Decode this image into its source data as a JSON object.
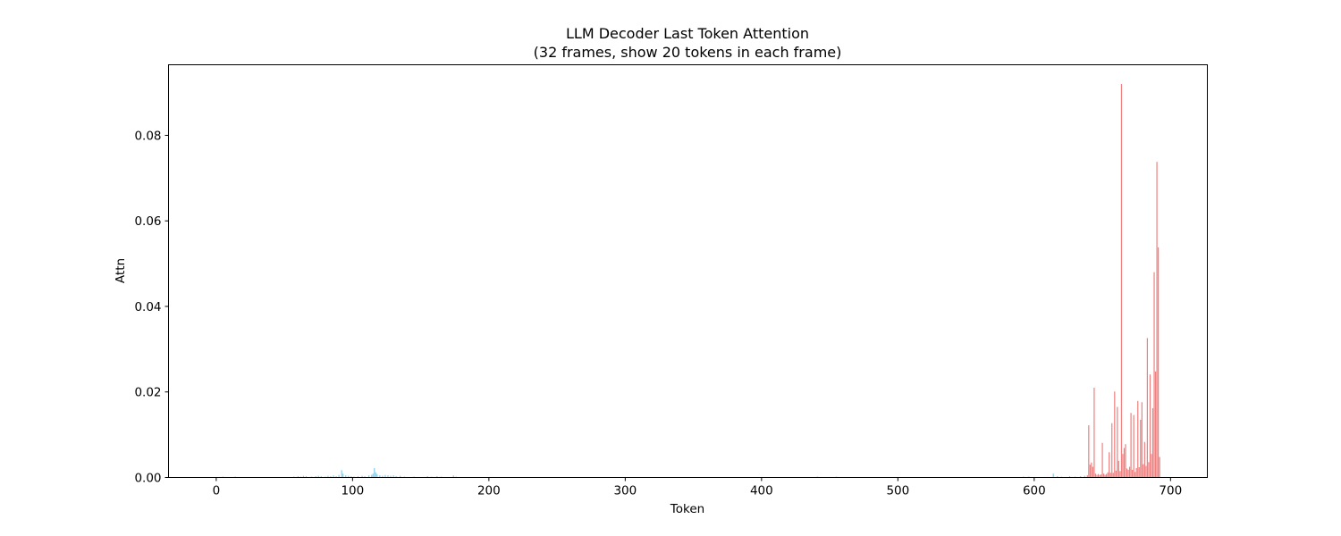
{
  "chart_data": {
    "type": "bar",
    "title": "LLM Decoder Last Token Attention",
    "subtitle": "(32 frames, show 20 tokens in each frame)",
    "xlabel": "Token",
    "ylabel": "Attn",
    "xlim": [
      -35,
      727
    ],
    "ylim": [
      0,
      0.0965
    ],
    "xticks": [
      0,
      100,
      200,
      300,
      400,
      500,
      600,
      700
    ],
    "yticks": [
      0.0,
      0.02,
      0.04,
      0.06,
      0.08
    ],
    "ytick_labels": [
      "0.00",
      "0.02",
      "0.04",
      "0.06",
      "0.08"
    ],
    "grid": false,
    "legend": "none",
    "series": [
      {
        "color": "#87ceeb",
        "points": [
          [
            5,
            0.0002
          ],
          [
            14,
            0.0002
          ],
          [
            24,
            0.0001
          ],
          [
            40,
            0.0001
          ],
          [
            57,
            0.0002
          ],
          [
            60,
            0.0003
          ],
          [
            62,
            0.0002
          ],
          [
            64,
            0.0004
          ],
          [
            66,
            0.0003
          ],
          [
            70,
            0.0002
          ],
          [
            73,
            0.0003
          ],
          [
            75,
            0.0004
          ],
          [
            77,
            0.0003
          ],
          [
            80,
            0.0002
          ],
          [
            82,
            0.0004
          ],
          [
            84,
            0.0003
          ],
          [
            86,
            0.0005
          ],
          [
            88,
            0.0003
          ],
          [
            90,
            0.0006
          ],
          [
            92,
            0.0017
          ],
          [
            93,
            0.0009
          ],
          [
            95,
            0.0005
          ],
          [
            97,
            0.0004
          ],
          [
            99,
            0.0003
          ],
          [
            101,
            0.0002
          ],
          [
            104,
            0.0003
          ],
          [
            107,
            0.0004
          ],
          [
            109,
            0.0003
          ],
          [
            112,
            0.0005
          ],
          [
            114,
            0.0006
          ],
          [
            115,
            0.0009
          ],
          [
            116,
            0.0022
          ],
          [
            117,
            0.0012
          ],
          [
            118,
            0.0008
          ],
          [
            120,
            0.0005
          ],
          [
            122,
            0.0004
          ],
          [
            124,
            0.0006
          ],
          [
            126,
            0.0005
          ],
          [
            128,
            0.0004
          ],
          [
            130,
            0.0005
          ],
          [
            132,
            0.0003
          ],
          [
            135,
            0.0004
          ],
          [
            138,
            0.0002
          ],
          [
            145,
            0.0002
          ],
          [
            155,
            0.0003
          ],
          [
            158,
            0.0002
          ],
          [
            162,
            0.0003
          ],
          [
            165,
            0.0002
          ],
          [
            174,
            0.0005
          ],
          [
            176,
            0.0002
          ],
          [
            188,
            0.0001
          ],
          [
            215,
            0.0001
          ],
          [
            250,
            0.0001
          ],
          [
            300,
            0.0001
          ],
          [
            350,
            0.0001
          ],
          [
            400,
            0.0001
          ],
          [
            441,
            0.0002
          ],
          [
            455,
            0.0002
          ],
          [
            500,
            0.0001
          ],
          [
            560,
            0.0001
          ],
          [
            592,
            0.0002
          ],
          [
            596,
            0.0002
          ],
          [
            614,
            0.0009
          ],
          [
            617,
            0.0003
          ],
          [
            620,
            0.0002
          ],
          [
            626,
            0.0003
          ],
          [
            630,
            0.0002
          ],
          [
            634,
            0.0003
          ],
          [
            637,
            0.0004
          ]
        ]
      },
      {
        "color": "#f08080",
        "points": [
          [
            639,
            0.0005
          ],
          [
            640,
            0.0122
          ],
          [
            641,
            0.003
          ],
          [
            642,
            0.0035
          ],
          [
            643,
            0.0025
          ],
          [
            644,
            0.021
          ],
          [
            645,
            0.0009
          ],
          [
            646,
            0.0006
          ],
          [
            647,
            0.0008
          ],
          [
            648,
            0.0006
          ],
          [
            649,
            0.0007
          ],
          [
            650,
            0.0081
          ],
          [
            651,
            0.0009
          ],
          [
            652,
            0.0006
          ],
          [
            653,
            0.0008
          ],
          [
            654,
            0.0012
          ],
          [
            655,
            0.0059
          ],
          [
            656,
            0.0011
          ],
          [
            657,
            0.0127
          ],
          [
            658,
            0.0011
          ],
          [
            659,
            0.0201
          ],
          [
            660,
            0.0016
          ],
          [
            661,
            0.0165
          ],
          [
            662,
            0.0039
          ],
          [
            663,
            0.0015
          ],
          [
            664,
            0.092
          ],
          [
            665,
            0.0055
          ],
          [
            666,
            0.0069
          ],
          [
            667,
            0.0078
          ],
          [
            668,
            0.0021
          ],
          [
            669,
            0.0018
          ],
          [
            670,
            0.0025
          ],
          [
            671,
            0.0151
          ],
          [
            672,
            0.0018
          ],
          [
            673,
            0.0146
          ],
          [
            674,
            0.0013
          ],
          [
            675,
            0.0022
          ],
          [
            676,
            0.0179
          ],
          [
            677,
            0.0024
          ],
          [
            678,
            0.0135
          ],
          [
            679,
            0.0176
          ],
          [
            680,
            0.0031
          ],
          [
            681,
            0.0083
          ],
          [
            682,
            0.0027
          ],
          [
            683,
            0.0326
          ],
          [
            684,
            0.0036
          ],
          [
            685,
            0.0241
          ],
          [
            686,
            0.0055
          ],
          [
            687,
            0.0162
          ],
          [
            688,
            0.048
          ],
          [
            689,
            0.0248
          ],
          [
            690,
            0.0738
          ],
          [
            691,
            0.0538
          ],
          [
            692,
            0.0048
          ]
        ]
      }
    ]
  }
}
